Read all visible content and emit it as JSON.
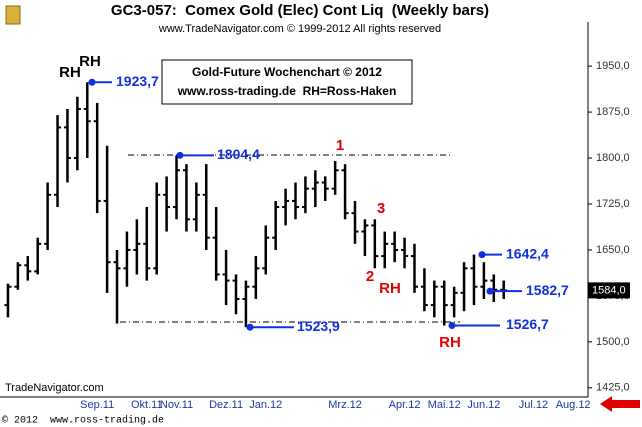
{
  "chart_data": {
    "type": "ohlc",
    "title": "GC3-057:  Comex Gold (Elec) Cont Liq  (Weekly bars)",
    "subtitle": "www.TradeNavigator.com © 1999-2012 All rights reserved",
    "notes_box": [
      "Gold-Future Wochenchart © 2012",
      "www.ross-trading.de  RH=Ross-Haken"
    ],
    "source": "TradeNavigator.com",
    "footer": "© 2012  www.ross-trading.de",
    "color": "#000000",
    "categories": [
      null,
      null,
      null,
      null,
      null,
      null,
      null,
      null,
      null,
      "Sep.11",
      null,
      null,
      null,
      null,
      "Okt.11",
      null,
      null,
      "Nov.11",
      null,
      null,
      null,
      null,
      "Dez.11",
      null,
      null,
      null,
      "Jan.12",
      null,
      null,
      null,
      null,
      null,
      null,
      null,
      "Mrz.12",
      null,
      null,
      null,
      null,
      null,
      "Apr.12",
      null,
      null,
      null,
      "Mai.12",
      null,
      null,
      null,
      "Jun.12",
      null,
      null,
      null,
      null,
      "Jul.12",
      null,
      null,
      null,
      "Aug.12",
      null
    ],
    "open": [
      1560,
      1590,
      1625,
      1615,
      1660,
      1740,
      1850,
      1800,
      1880,
      1860,
      1730,
      1630,
      1620,
      1650,
      1660,
      1620,
      1740,
      1720,
      1780,
      1700,
      1740,
      1670,
      1610,
      1600,
      1570,
      1590,
      1620,
      1670,
      1720,
      1730,
      1720,
      1750,
      1760,
      1750,
      1780,
      1710,
      1680,
      1690,
      1640,
      1660,
      1650,
      1640,
      1590,
      1560,
      1590,
      1560,
      1580,
      1620,
      1590,
      1600,
      1585,
      null,
      null,
      null,
      null,
      null,
      null,
      null,
      null
    ],
    "high": [
      1595,
      1630,
      1640,
      1670,
      1760,
      1870,
      1880,
      1900,
      1923.7,
      1890,
      1820,
      1650,
      1680,
      1700,
      1720,
      1760,
      1770,
      1804.4,
      1790,
      1760,
      1790,
      1720,
      1650,
      1610,
      1600,
      1640,
      1690,
      1730,
      1750,
      1760,
      1770,
      1780,
      1770,
      1795,
      1790,
      1730,
      1700,
      1700,
      1680,
      1680,
      1670,
      1660,
      1620,
      1600,
      1600,
      1590,
      1630,
      1642.4,
      1630,
      1610,
      1600,
      null,
      null,
      null,
      null,
      null,
      null,
      null,
      null
    ],
    "low": [
      1540,
      1585,
      1600,
      1610,
      1650,
      1720,
      1760,
      1780,
      1800,
      1710,
      1580,
      1530,
      1590,
      1610,
      1600,
      1610,
      1680,
      1700,
      1680,
      1680,
      1650,
      1600,
      1560,
      1545,
      1523.9,
      1570,
      1610,
      1650,
      1690,
      1700,
      1710,
      1720,
      1730,
      1740,
      1700,
      1660,
      1640,
      1620,
      1620,
      1630,
      1620,
      1580,
      1550,
      1540,
      1526.7,
      1540,
      1550,
      1560,
      1570,
      1565,
      1570,
      null,
      null,
      null,
      null,
      null,
      null,
      null,
      null
    ],
    "close": [
      1590,
      1625,
      1615,
      1660,
      1740,
      1850,
      1800,
      1880,
      1860,
      1730,
      1630,
      1620,
      1650,
      1660,
      1620,
      1740,
      1720,
      1780,
      1700,
      1740,
      1670,
      1610,
      1600,
      1570,
      1590,
      1620,
      1670,
      1720,
      1730,
      1720,
      1750,
      1760,
      1750,
      1780,
      1710,
      1680,
      1690,
      1640,
      1660,
      1650,
      1640,
      1590,
      1560,
      1590,
      1560,
      1580,
      1620,
      1590,
      1600,
      1585,
      1584,
      null,
      null,
      null,
      null,
      null,
      null,
      null,
      null
    ],
    "ylim": [
      1410,
      2022
    ],
    "yticks": [
      {
        "value": 1425,
        "label": "1425,0"
      },
      {
        "value": 1500,
        "label": "1500,0"
      },
      {
        "value": 1575,
        "label": "1575,0"
      },
      {
        "value": 1650,
        "label": "1650,0"
      },
      {
        "value": 1725,
        "label": "1725,0"
      },
      {
        "value": 1800,
        "label": "1800,0"
      },
      {
        "value": 1875,
        "label": "1875,0"
      },
      {
        "value": 1950,
        "label": "1950,0"
      }
    ],
    "last_price": {
      "value": 1584.0,
      "label": "1584,0"
    },
    "levels": [
      {
        "value": 1923.7,
        "label": "1923,7"
      },
      {
        "value": 1804.4,
        "label": "1804,4"
      },
      {
        "value": 1523.9,
        "label": "1523,9"
      },
      {
        "value": 1642.4,
        "label": "1642,4"
      },
      {
        "value": 1582.7,
        "label": "1582,7"
      },
      {
        "value": 1526.7,
        "label": "1526,7"
      }
    ],
    "annotations": [
      {
        "text": "RH",
        "color": "#000000"
      },
      {
        "text": "RH",
        "color": "#000000"
      },
      {
        "text": "1",
        "color": "#e00000"
      },
      {
        "text": "2",
        "color": "#e00000"
      },
      {
        "text": "3",
        "color": "#e00000"
      },
      {
        "text": "RH",
        "color": "#e00000"
      },
      {
        "text": "RH",
        "color": "#e00000"
      }
    ]
  }
}
